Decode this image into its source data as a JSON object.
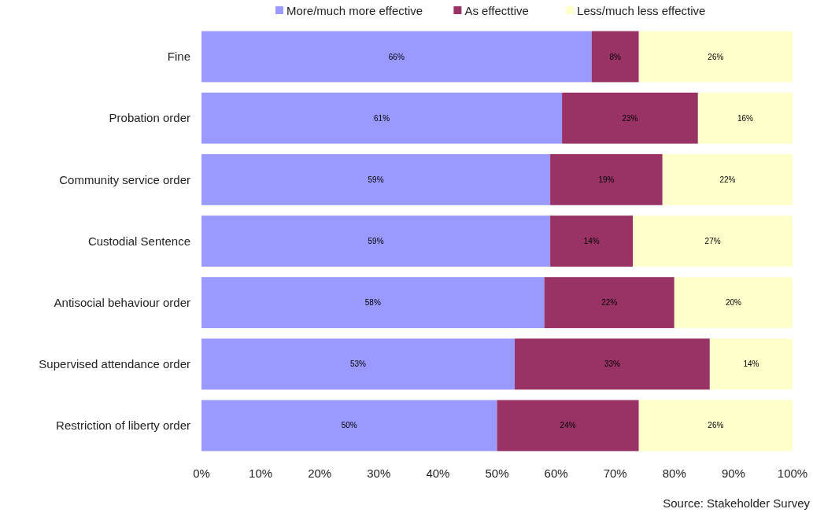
{
  "chart_data": {
    "type": "bar",
    "orientation": "horizontal",
    "stacked": true,
    "categories": [
      "Fine",
      "Probation order",
      "Community service order",
      "Custodial Sentence",
      "Antisocial behaviour order",
      "Supervised attendance order",
      "Restriction of liberty order"
    ],
    "series": [
      {
        "name": "More/much more effective",
        "color": "#9999ff",
        "values": [
          66,
          61,
          59,
          59,
          58,
          53,
          50
        ],
        "value_labels": [
          "66%",
          "61%",
          "59%",
          "59%",
          "58%",
          "53%",
          "50%"
        ]
      },
      {
        "name": "As effecttive",
        "color": "#993366",
        "values": [
          8,
          23,
          19,
          14,
          22,
          33,
          24
        ],
        "value_labels": [
          "8%",
          "23%",
          "19%",
          "14%",
          "22%",
          "33%",
          "24%"
        ]
      },
      {
        "name": "Less/much less effective",
        "color": "#ffffcc",
        "values": [
          26,
          16,
          22,
          27,
          20,
          14,
          26
        ],
        "value_labels": [
          "26%",
          "16%",
          "22%",
          "27%",
          "20%",
          "14%",
          "26%"
        ]
      }
    ],
    "xlim": [
      0,
      100
    ],
    "xticks": [
      {
        "value": 0,
        "label": "0%"
      },
      {
        "value": 10,
        "label": "10%"
      },
      {
        "value": 20,
        "label": "20%"
      },
      {
        "value": 30,
        "label": "30%"
      },
      {
        "value": 40,
        "label": "40%"
      },
      {
        "value": 50,
        "label": "50%"
      },
      {
        "value": 60,
        "label": "60%"
      },
      {
        "value": 70,
        "label": "70%"
      },
      {
        "value": 80,
        "label": "80%"
      },
      {
        "value": 90,
        "label": "90%"
      },
      {
        "value": 100,
        "label": "100%"
      }
    ],
    "legend": "top",
    "grid": false,
    "annotations": [
      "Source: Stakeholder Survey"
    ]
  }
}
